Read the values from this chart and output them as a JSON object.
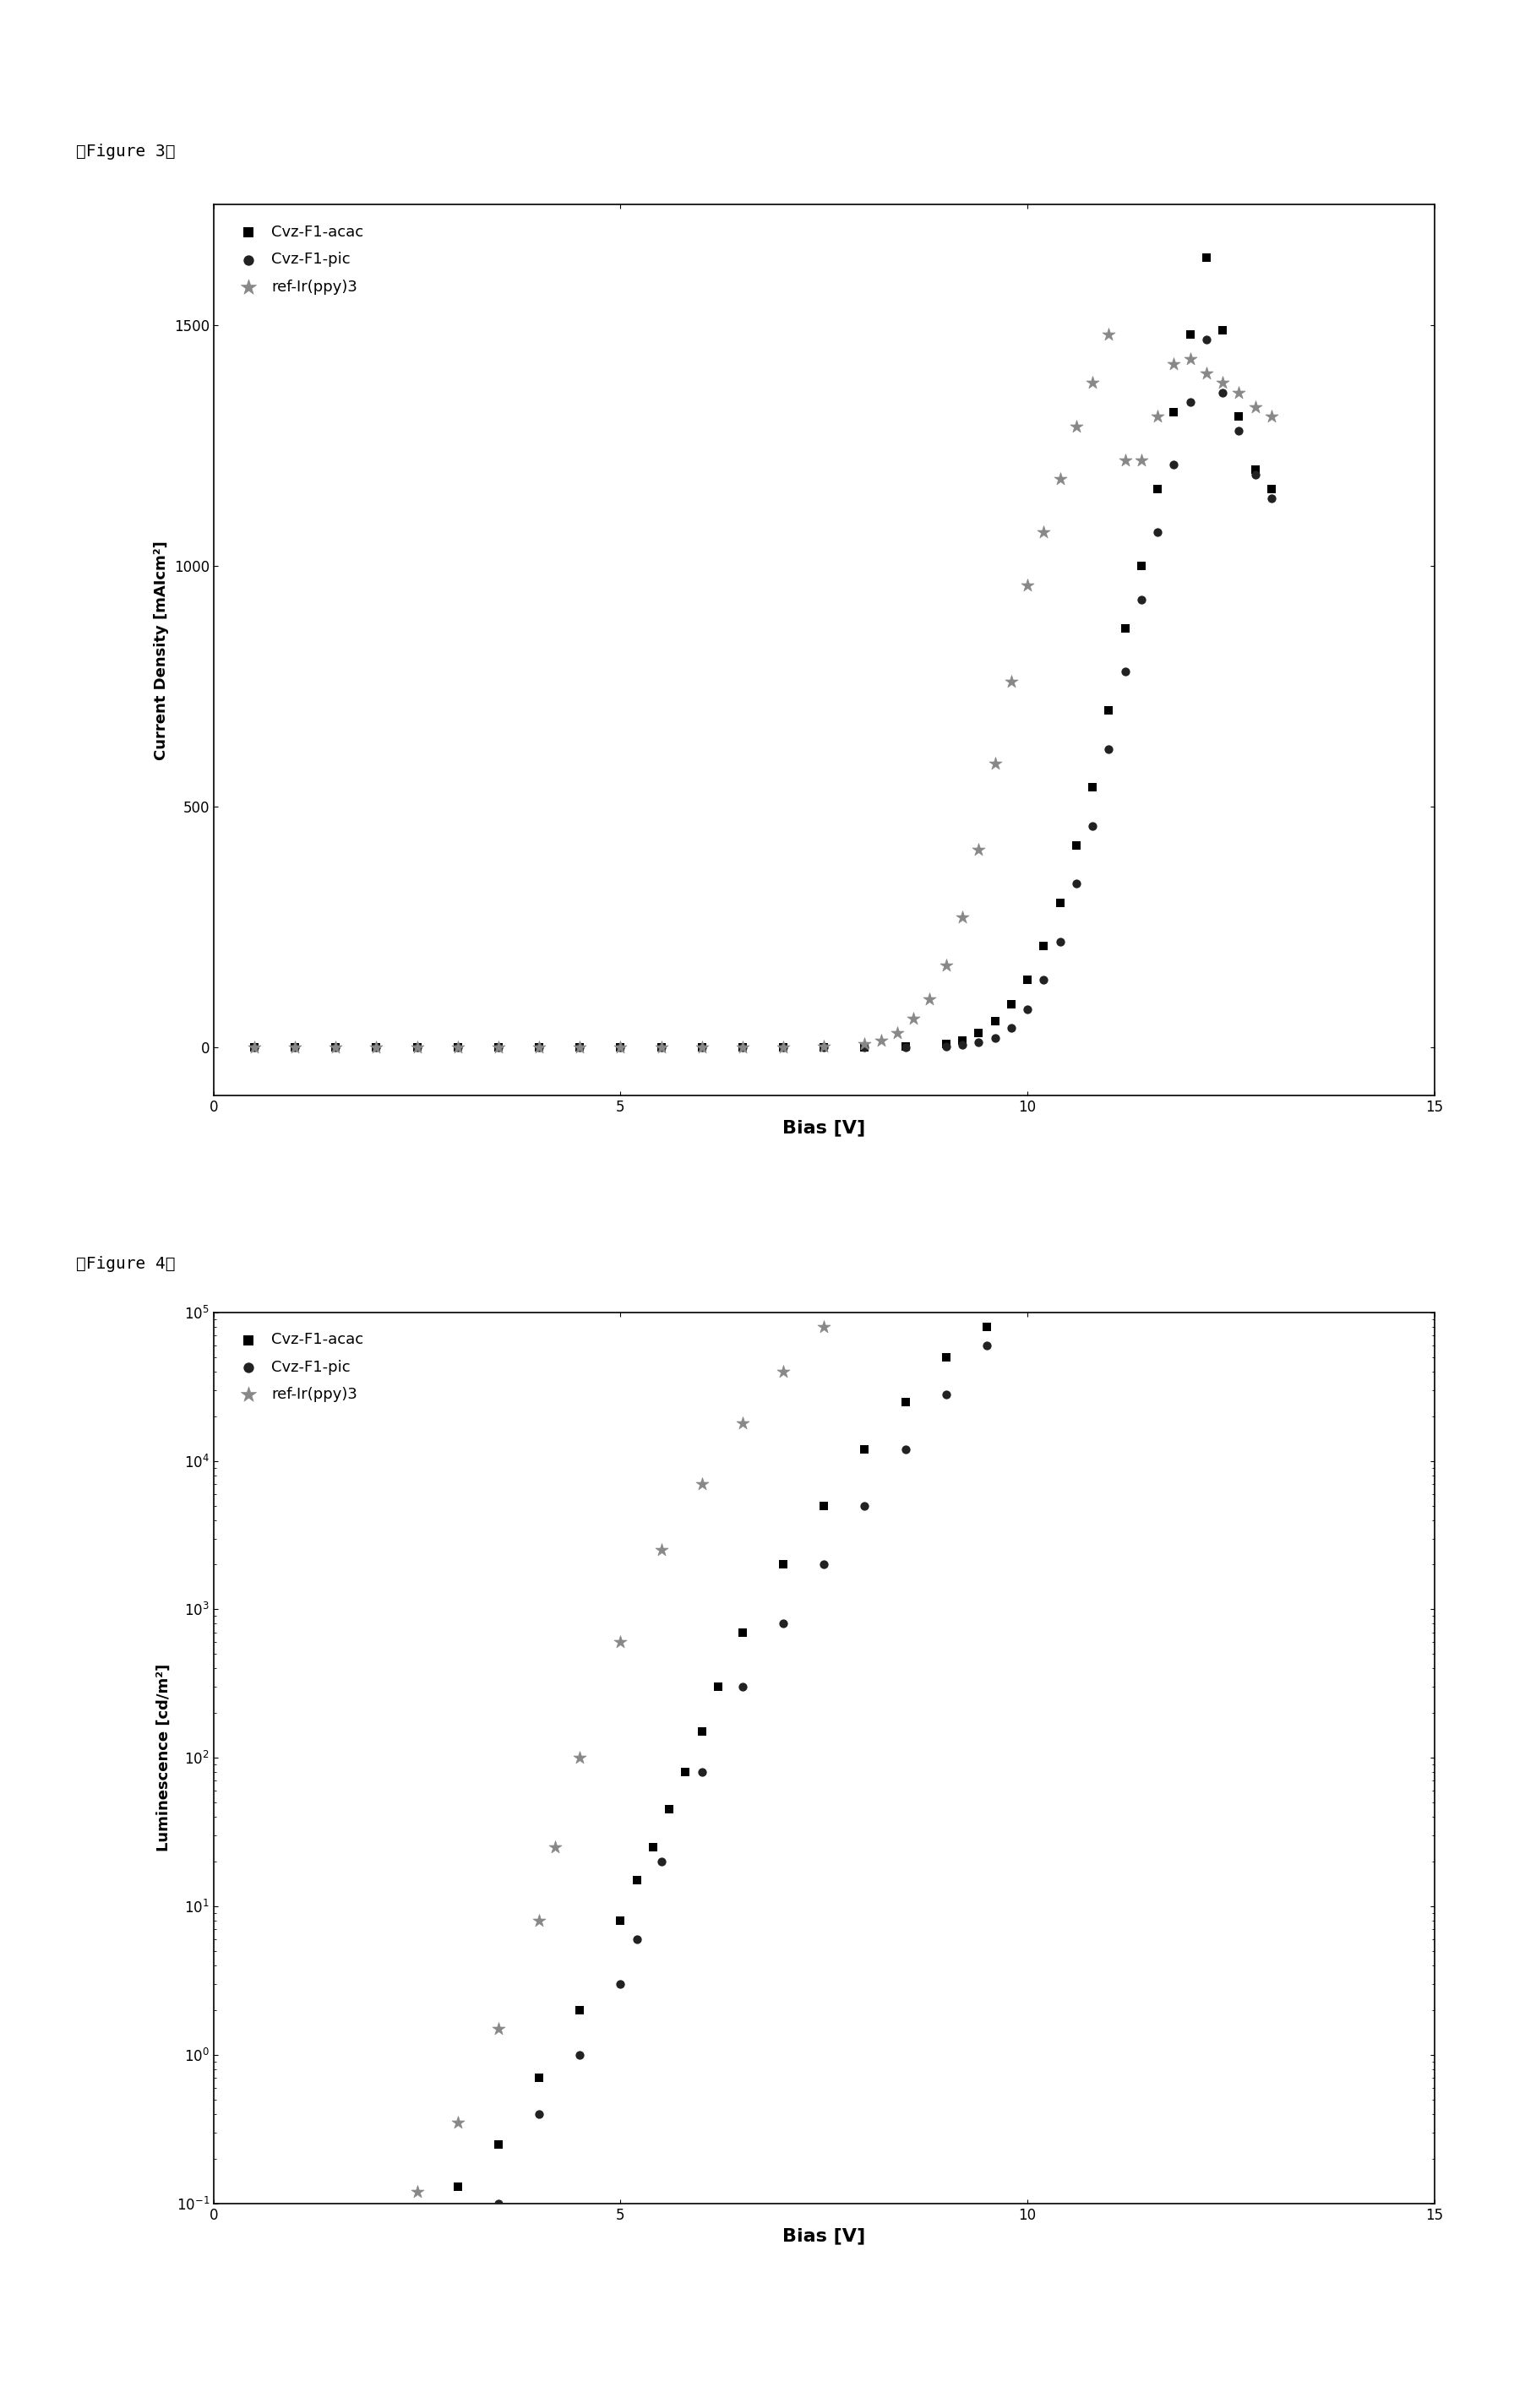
{
  "fig3_title": "『Figure 3』",
  "fig4_title": "『Figure 4』",
  "fig3_xlabel": "Bias [V]",
  "fig3_ylabel": "Current Density [mAIcm²]",
  "fig4_xlabel": "Bias [V]",
  "fig4_ylabel": "Luminescence [cd/m²]",
  "legend_labels": [
    "Cvz-F1-acac",
    "Cvz-F1-pic",
    "ref-Ir(ppy)3"
  ],
  "marker_acac": "s",
  "marker_pic": "o",
  "marker_ref": "*",
  "color_acac": "#000000",
  "color_pic": "#222222",
  "color_ref": "#888888",
  "fig3_xlim": [
    0,
    15
  ],
  "fig3_ylim": [
    -100,
    1750
  ],
  "fig4_xlim": [
    0,
    15
  ],
  "background_color": "#ffffff",
  "fig3_acac_x": [
    0.5,
    1.0,
    1.5,
    2.0,
    2.5,
    3.0,
    3.5,
    4.0,
    4.5,
    5.0,
    5.5,
    6.0,
    6.5,
    7.0,
    7.5,
    8.0,
    8.5,
    9.0,
    9.2,
    9.4,
    9.6,
    9.8,
    10.0,
    10.2,
    10.4,
    10.6,
    10.8,
    11.0,
    11.2,
    11.4,
    11.6,
    11.8,
    12.0,
    12.2,
    12.4,
    12.6,
    12.8,
    13.0
  ],
  "fig3_acac_y": [
    0,
    0,
    0,
    0,
    0,
    0,
    0,
    0,
    0,
    0,
    0,
    0,
    0,
    0,
    0,
    0,
    2,
    8,
    15,
    30,
    55,
    90,
    140,
    210,
    300,
    420,
    540,
    700,
    870,
    1000,
    1160,
    1320,
    1480,
    1640,
    1490,
    1310,
    1200,
    1160
  ],
  "fig3_pic_x": [
    0.5,
    1.0,
    1.5,
    2.0,
    2.5,
    3.0,
    3.5,
    4.0,
    4.5,
    5.0,
    5.5,
    6.0,
    6.5,
    7.0,
    7.5,
    8.0,
    8.5,
    9.0,
    9.2,
    9.4,
    9.6,
    9.8,
    10.0,
    10.2,
    10.4,
    10.6,
    10.8,
    11.0,
    11.2,
    11.4,
    11.6,
    11.8,
    12.0,
    12.2,
    12.4,
    12.6,
    12.8,
    13.0
  ],
  "fig3_pic_y": [
    0,
    0,
    0,
    0,
    0,
    0,
    0,
    0,
    0,
    0,
    0,
    0,
    0,
    0,
    0,
    0,
    0,
    2,
    5,
    10,
    20,
    40,
    80,
    140,
    220,
    340,
    460,
    620,
    780,
    930,
    1070,
    1210,
    1340,
    1470,
    1360,
    1280,
    1190,
    1140
  ],
  "fig3_ref_x": [
    0.5,
    1.0,
    1.5,
    2.0,
    2.5,
    3.0,
    3.5,
    4.0,
    4.5,
    5.0,
    5.5,
    6.0,
    6.5,
    7.0,
    7.5,
    8.0,
    8.2,
    8.4,
    8.6,
    8.8,
    9.0,
    9.2,
    9.4,
    9.6,
    9.8,
    10.0,
    10.2,
    10.4,
    10.6,
    10.8,
    11.0,
    11.2,
    11.4,
    11.6,
    11.8,
    12.0,
    12.2,
    12.4,
    12.6,
    12.8,
    13.0
  ],
  "fig3_ref_y": [
    0,
    0,
    0,
    0,
    0,
    0,
    0,
    0,
    0,
    0,
    0,
    0,
    0,
    0,
    2,
    8,
    15,
    30,
    60,
    100,
    170,
    270,
    410,
    590,
    760,
    960,
    1070,
    1180,
    1290,
    1380,
    1480,
    1220,
    1220,
    1310,
    1420,
    1430,
    1400,
    1380,
    1360,
    1330,
    1310
  ],
  "fig4_acac_x": [
    3.0,
    3.5,
    4.0,
    4.5,
    5.0,
    5.2,
    5.4,
    5.6,
    5.8,
    6.0,
    6.2,
    6.5,
    7.0,
    7.5,
    8.0,
    8.5,
    9.0,
    9.5,
    10.0,
    10.5,
    11.0,
    11.5,
    12.0
  ],
  "fig4_acac_y": [
    0.13,
    0.25,
    0.7,
    2.0,
    8,
    15,
    25,
    45,
    80,
    150,
    300,
    700,
    2000,
    5000,
    12000,
    25000,
    50000,
    80000,
    150000,
    250000,
    400000,
    550000,
    700000
  ],
  "fig4_pic_x": [
    3.5,
    4.0,
    4.5,
    5.0,
    5.2,
    5.5,
    6.0,
    6.5,
    7.0,
    7.5,
    8.0,
    8.5,
    9.0,
    9.5,
    10.0,
    10.5,
    11.0,
    11.5,
    12.0
  ],
  "fig4_pic_y": [
    0.1,
    0.4,
    1.0,
    3.0,
    6,
    20,
    80,
    300,
    800,
    2000,
    5000,
    12000,
    28000,
    60000,
    120000,
    200000,
    300000,
    400000,
    500000
  ],
  "fig4_ref_x": [
    2.5,
    3.0,
    3.5,
    4.0,
    4.2,
    4.5,
    5.0,
    5.5,
    6.0,
    6.5,
    7.0,
    7.5,
    8.0,
    8.5,
    9.0,
    9.5,
    10.0,
    10.5,
    11.0,
    11.5,
    12.0
  ],
  "fig4_ref_y": [
    0.12,
    0.35,
    1.5,
    8,
    25,
    100,
    600,
    2500,
    7000,
    18000,
    40000,
    80000,
    150000,
    280000,
    500000,
    800000,
    1200000,
    1800000,
    2500000,
    3500000,
    5000000
  ]
}
